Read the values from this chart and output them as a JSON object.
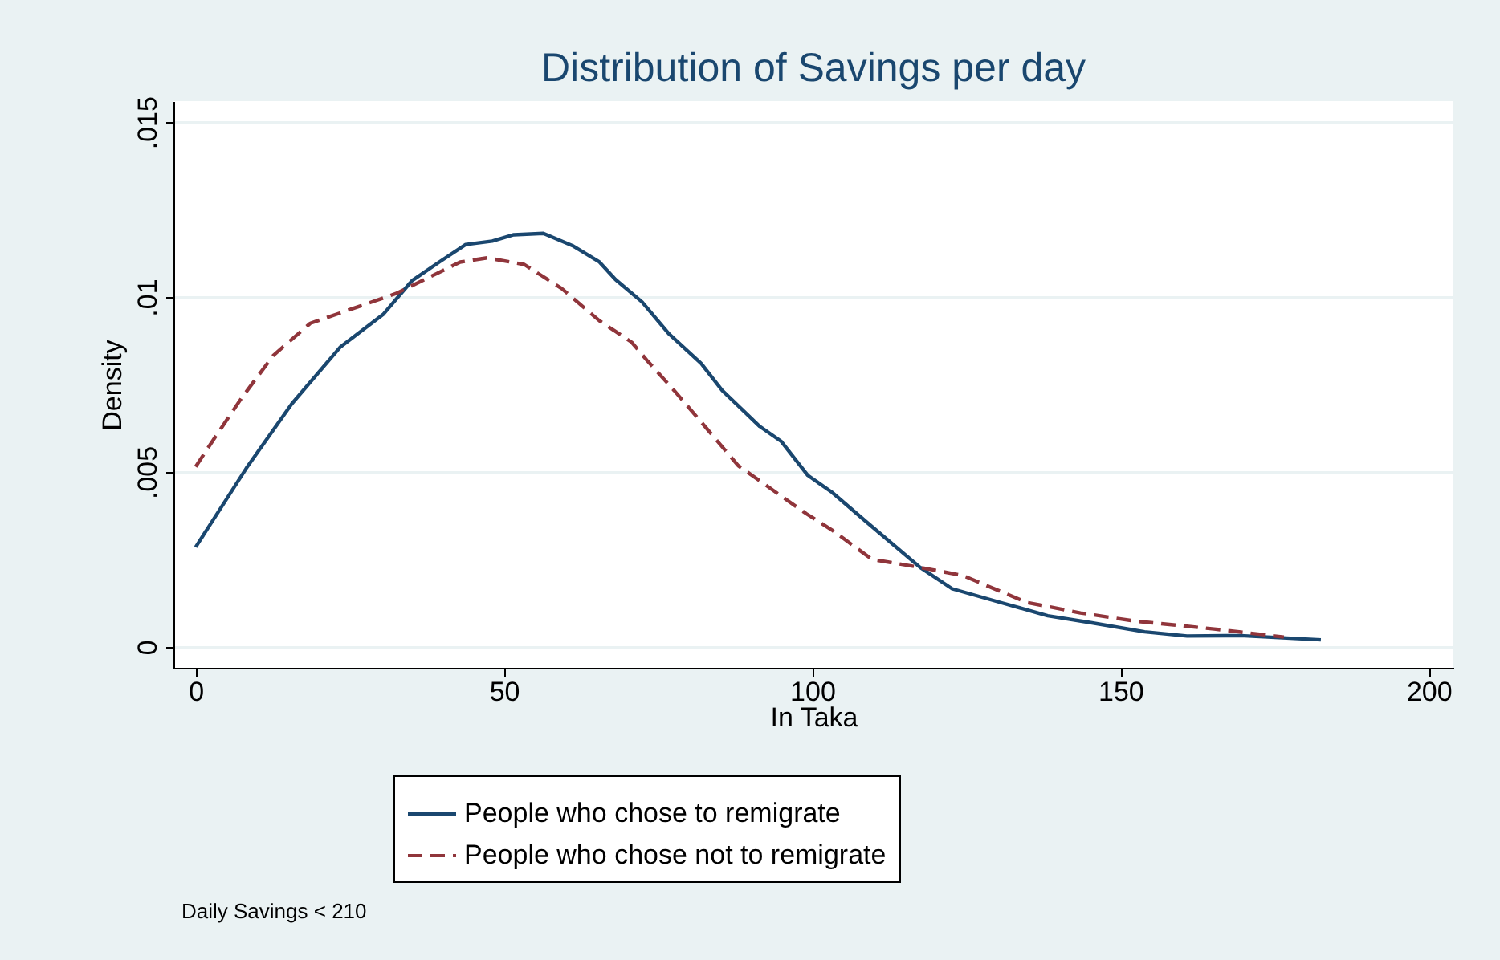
{
  "chart_data": {
    "type": "line",
    "title": "Distribution of Savings per day",
    "xlabel": "In Taka",
    "ylabel": "Density",
    "xlim": [
      -3.6,
      204
    ],
    "ylim": [
      -0.0006,
      0.0156
    ],
    "xticks": [
      0,
      50,
      100,
      150,
      200
    ],
    "yticks": [
      {
        "value": 0,
        "label": "0"
      },
      {
        "value": 0.005,
        "label": ".005"
      },
      {
        "value": 0.01,
        "label": ".01"
      },
      {
        "value": 0.015,
        "label": ".015"
      }
    ],
    "grid": "y",
    "legend": "bottom",
    "marker": "none",
    "annotations": [
      "Daily Savings < 210"
    ],
    "series": [
      {
        "name": "People who chose to remigrate",
        "color": "#1a476f",
        "line_style": "solid",
        "x": [
          0,
          8.2,
          15.6,
          23.4,
          30.4,
          35.1,
          39.5,
          43.8,
          48.1,
          51.6,
          56.4,
          61.1,
          65.5,
          68.1,
          72.4,
          76.8,
          82,
          85.4,
          91.5,
          95,
          99.3,
          103.2,
          108.8,
          117.5,
          122.7,
          130.5,
          138.2,
          145.2,
          153.9,
          160.8,
          169.5,
          182.5
        ],
        "values": [
          0.00285,
          0.0051,
          0.00695,
          0.00856,
          0.0095,
          0.01047,
          0.011,
          0.0115,
          0.0116,
          0.01178,
          0.01182,
          0.01147,
          0.011,
          0.0105,
          0.00986,
          0.00894,
          0.0081,
          0.00733,
          0.0063,
          0.00587,
          0.0049,
          0.00442,
          0.00357,
          0.00227,
          0.00166,
          0.00127,
          0.00089,
          0.00069,
          0.00043,
          0.00031,
          0.00032,
          0.0002
        ]
      },
      {
        "name": "People who chose not to remigrate",
        "color": "#90353b",
        "line_style": "dashed",
        "x": [
          0,
          3,
          7.4,
          12.6,
          18.6,
          27.3,
          32.5,
          37.7,
          42.9,
          47.3,
          53.3,
          59.4,
          65.5,
          70.7,
          73.3,
          77.6,
          82.8,
          88,
          94.1,
          99.1,
          103.2,
          109.7,
          117.5,
          124.4,
          134.8,
          143.5,
          152.2,
          165.2,
          176.5
        ],
        "values": [
          0.00515,
          0.00595,
          0.0071,
          0.00833,
          0.00925,
          0.00978,
          0.0101,
          0.01055,
          0.011,
          0.01112,
          0.01093,
          0.01024,
          0.00932,
          0.00871,
          0.00817,
          0.00733,
          0.00626,
          0.00518,
          0.00442,
          0.0038,
          0.00334,
          0.0025,
          0.00227,
          0.00204,
          0.00127,
          0.00097,
          0.00074,
          0.00051,
          0.00028
        ]
      }
    ]
  }
}
